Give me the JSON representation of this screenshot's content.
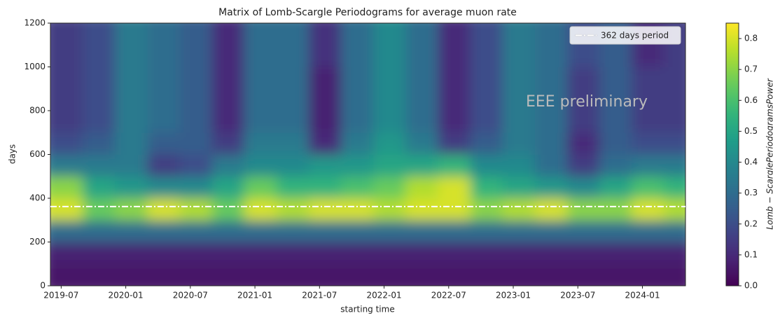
{
  "chart_data": {
    "type": "heatmap",
    "title": "Matrix of Lomb-Scargle Periodograms for average muon rate",
    "x_label": "starting time",
    "y_label": "days",
    "x": [
      "2019-06",
      "2019-09",
      "2019-12",
      "2020-03",
      "2020-06",
      "2020-09",
      "2020-12",
      "2021-03",
      "2021-06",
      "2021-09",
      "2021-12",
      "2022-03",
      "2022-06",
      "2022-09",
      "2022-12",
      "2023-03",
      "2023-06",
      "2023-09",
      "2023-12",
      "2024-03"
    ],
    "ybins": [
      0,
      100,
      200,
      300,
      400,
      500,
      600,
      700,
      800,
      900,
      1000,
      1100,
      1200
    ],
    "z": [
      [
        0.05,
        0.05,
        0.05,
        0.05,
        0.05,
        0.05,
        0.05,
        0.05,
        0.05,
        0.05,
        0.05,
        0.05,
        0.05,
        0.05,
        0.05,
        0.05,
        0.05,
        0.05,
        0.05,
        0.05
      ],
      [
        0.08,
        0.08,
        0.08,
        0.08,
        0.08,
        0.08,
        0.08,
        0.08,
        0.08,
        0.08,
        0.08,
        0.08,
        0.08,
        0.08,
        0.08,
        0.08,
        0.08,
        0.08,
        0.08,
        0.08
      ],
      [
        0.3,
        0.3,
        0.3,
        0.3,
        0.3,
        0.3,
        0.3,
        0.3,
        0.3,
        0.3,
        0.3,
        0.3,
        0.3,
        0.3,
        0.3,
        0.3,
        0.3,
        0.3,
        0.3,
        0.3
      ],
      [
        0.8,
        0.65,
        0.7,
        0.8,
        0.75,
        0.65,
        0.8,
        0.75,
        0.8,
        0.8,
        0.75,
        0.8,
        0.8,
        0.7,
        0.75,
        0.8,
        0.7,
        0.7,
        0.8,
        0.75
      ],
      [
        0.7,
        0.5,
        0.45,
        0.4,
        0.4,
        0.5,
        0.65,
        0.55,
        0.55,
        0.6,
        0.65,
        0.75,
        0.8,
        0.55,
        0.5,
        0.45,
        0.4,
        0.5,
        0.6,
        0.55
      ],
      [
        0.35,
        0.35,
        0.35,
        0.15,
        0.2,
        0.35,
        0.4,
        0.4,
        0.45,
        0.45,
        0.5,
        0.5,
        0.55,
        0.4,
        0.4,
        0.3,
        0.15,
        0.3,
        0.35,
        0.35
      ],
      [
        0.2,
        0.25,
        0.35,
        0.25,
        0.25,
        0.15,
        0.35,
        0.35,
        0.1,
        0.35,
        0.45,
        0.35,
        0.15,
        0.25,
        0.35,
        0.3,
        0.1,
        0.25,
        0.2,
        0.2
      ],
      [
        0.15,
        0.2,
        0.35,
        0.3,
        0.25,
        0.1,
        0.3,
        0.3,
        0.08,
        0.3,
        0.4,
        0.3,
        0.1,
        0.2,
        0.35,
        0.3,
        0.15,
        0.25,
        0.15,
        0.15
      ],
      [
        0.15,
        0.2,
        0.35,
        0.3,
        0.25,
        0.1,
        0.3,
        0.3,
        0.08,
        0.3,
        0.4,
        0.3,
        0.1,
        0.2,
        0.35,
        0.3,
        0.15,
        0.25,
        0.15,
        0.15
      ],
      [
        0.15,
        0.2,
        0.35,
        0.3,
        0.25,
        0.1,
        0.3,
        0.3,
        0.08,
        0.3,
        0.4,
        0.3,
        0.1,
        0.2,
        0.35,
        0.3,
        0.15,
        0.25,
        0.15,
        0.15
      ],
      [
        0.15,
        0.2,
        0.35,
        0.3,
        0.25,
        0.1,
        0.3,
        0.3,
        0.12,
        0.3,
        0.4,
        0.3,
        0.1,
        0.2,
        0.35,
        0.3,
        0.2,
        0.25,
        0.1,
        0.15
      ],
      [
        0.15,
        0.2,
        0.35,
        0.3,
        0.25,
        0.1,
        0.3,
        0.3,
        0.12,
        0.3,
        0.4,
        0.3,
        0.1,
        0.2,
        0.35,
        0.3,
        0.2,
        0.25,
        0.1,
        0.15
      ]
    ],
    "xlim": [
      "2019-06",
      "2024-05"
    ],
    "xticks": [
      "2019-07",
      "2020-01",
      "2020-07",
      "2021-01",
      "2021-07",
      "2022-01",
      "2022-07",
      "2023-01",
      "2023-07",
      "2024-01"
    ],
    "ylim": [
      0,
      1200
    ],
    "yticks": [
      0,
      200,
      400,
      600,
      800,
      1000,
      1200
    ],
    "colorbar": {
      "label": "Lomb − ScarglePeriodogramsPower",
      "lim": [
        0,
        0.85
      ],
      "ticks": [
        {
          "value": 0,
          "label": "0.0"
        },
        0.1,
        0.2,
        0.3,
        0.4,
        0.5,
        0.6,
        0.7,
        0.8
      ]
    },
    "reference_line": {
      "name": "362 days period",
      "value": 362,
      "color": "#ffffff"
    },
    "annotation": "EEE preliminary",
    "legend": "upper right"
  }
}
